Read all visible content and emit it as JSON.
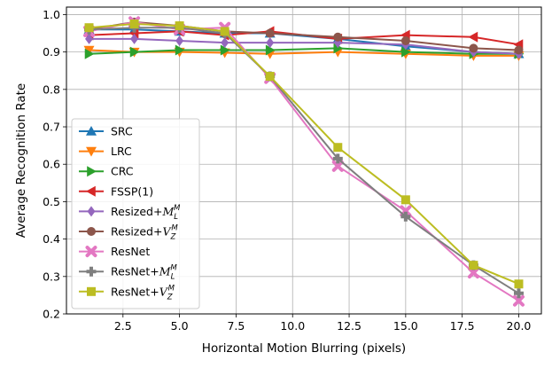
{
  "chart_data": {
    "type": "line",
    "title": "",
    "xlabel": "Horizontal Motion Blurring (pixels)",
    "ylabel": "Average Recognition Rate",
    "xlim": [
      0,
      21
    ],
    "ylim": [
      0.2,
      1.02
    ],
    "xticks": [
      2.5,
      5.0,
      7.5,
      10.0,
      12.5,
      15.0,
      17.5,
      20.0
    ],
    "xtick_labels": [
      "2.5",
      "5.0",
      "7.5",
      "10.0",
      "12.5",
      "15.0",
      "17.5",
      "20.0"
    ],
    "yticks": [
      0.2,
      0.3,
      0.4,
      0.5,
      0.6,
      0.7,
      0.8,
      0.9,
      1.0
    ],
    "ytick_labels": [
      "0.2",
      "0.3",
      "0.4",
      "0.5",
      "0.6",
      "0.7",
      "0.8",
      "0.9",
      "1.0"
    ],
    "grid": true,
    "legend_position": "left",
    "x": [
      1,
      3,
      5,
      7,
      9,
      12,
      15,
      18,
      20
    ],
    "series": [
      {
        "name": "SRC",
        "base": "SRC",
        "sup": "",
        "sub": "",
        "color": "#1f77b4",
        "marker": "triangle-up",
        "values": [
          0.96,
          0.96,
          0.955,
          0.95,
          0.95,
          0.935,
          0.915,
          0.9,
          0.895
        ]
      },
      {
        "name": "LRC",
        "base": "LRC",
        "sup": "",
        "sub": "",
        "color": "#ff7f0e",
        "marker": "triangle-down",
        "values": [
          0.905,
          0.9,
          0.9,
          0.898,
          0.895,
          0.9,
          0.895,
          0.89,
          0.89
        ]
      },
      {
        "name": "CRC",
        "base": "CRC",
        "sup": "",
        "sub": "",
        "color": "#2ca02c",
        "marker": "triangle-right",
        "values": [
          0.895,
          0.9,
          0.905,
          0.905,
          0.905,
          0.91,
          0.9,
          0.895,
          0.895
        ]
      },
      {
        "name": "FSSP(1)",
        "base": "FSSP(1)",
        "sup": "",
        "sub": "",
        "color": "#d62728",
        "marker": "triangle-left",
        "values": [
          0.945,
          0.95,
          0.955,
          0.945,
          0.955,
          0.935,
          0.945,
          0.94,
          0.92
        ]
      },
      {
        "name": "Resized+M_L^M",
        "base": "Resized+",
        "script": "M",
        "sup": "M",
        "sub": "L",
        "color": "#9467bd",
        "marker": "diamond",
        "values": [
          0.935,
          0.935,
          0.93,
          0.925,
          0.925,
          0.925,
          0.92,
          0.9,
          0.895
        ]
      },
      {
        "name": "Resized+V_Z^M",
        "base": "Resized+",
        "script": "V",
        "sup": "M",
        "sub": "Z",
        "color": "#8c564b",
        "marker": "circle",
        "values": [
          0.96,
          0.98,
          0.97,
          0.955,
          0.95,
          0.94,
          0.93,
          0.91,
          0.905
        ]
      },
      {
        "name": "ResNet",
        "base": "ResNet",
        "sup": "",
        "sub": "",
        "color": "#e377c2",
        "marker": "x-thick",
        "values": [
          0.955,
          0.98,
          0.96,
          0.965,
          0.83,
          0.595,
          0.475,
          0.31,
          0.235
        ]
      },
      {
        "name": "ResNet+M_L^M",
        "base": "ResNet+",
        "script": "M",
        "sup": "M",
        "sub": "L",
        "color": "#7f7f7f",
        "marker": "plus-thick",
        "values": [
          0.96,
          0.965,
          0.965,
          0.95,
          0.835,
          0.615,
          0.46,
          0.33,
          0.255
        ]
      },
      {
        "name": "ResNet+V_Z^M",
        "base": "ResNet+",
        "script": "V",
        "sup": "M",
        "sub": "Z",
        "color": "#bcbd22",
        "marker": "square",
        "values": [
          0.965,
          0.975,
          0.97,
          0.955,
          0.835,
          0.645,
          0.505,
          0.33,
          0.28
        ]
      }
    ]
  }
}
